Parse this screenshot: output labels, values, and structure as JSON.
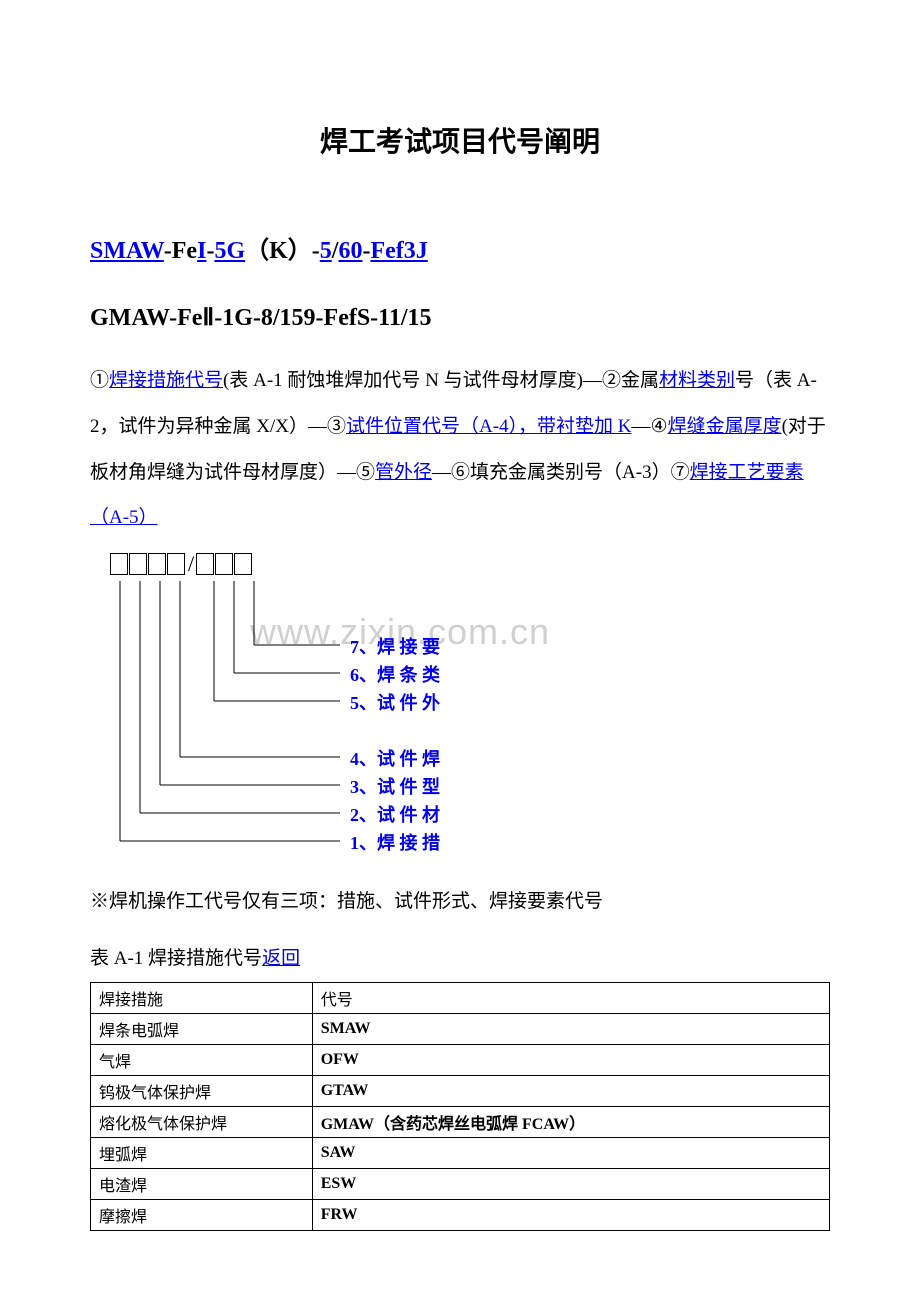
{
  "title": "焊工考试项目代号阐明",
  "example1": {
    "p1": "SMAW",
    "sep1": "-Fe",
    "p2": "I",
    "sep2": "-",
    "p3": "5G",
    "paren_open": "（",
    "p4": "K",
    "paren_close": "）",
    "sep3": "-",
    "p5": "5",
    "slash": "/",
    "p6": "60",
    "sep4": "-",
    "p7": "Fef3J"
  },
  "example2": "GMAW-FeⅡ-1G-8/159-FefS-11/15",
  "expl": {
    "c1": "①",
    "l1": "焊接措施代号",
    "t1": "(表 A-1 耐蚀堆焊加代号 N 与试件母材厚度)―②金属",
    "l2": "材料类别",
    "t2": "号（表 A-2，试件为异种金属 X/X）―③",
    "l3": "试件位置代号（A-4），带衬垫加 K",
    "t3": "―④",
    "l4": "焊缝金属厚度",
    "t4": "(对于板材角焊缝为试件母材厚度）―⑤",
    "l5": "管外径",
    "t5": "―⑥填充金属类别号（A-3）⑦",
    "l6": "焊接工艺要素（A-5）"
  },
  "watermark": "www.zixin.com.cn",
  "diagram_labels": {
    "d7": "7、焊 接 要",
    "d6": "6、焊 条 类",
    "d5": "5、试 件 外",
    "d4": "4、试 件 焊",
    "d3": "3、试 件 型",
    "d2": "2、试 件 材",
    "d1": "1、焊 接 措"
  },
  "note": "※焊机操作工代号仅有三项：措施、试件形式、焊接要素代号",
  "table_caption_prefix": "表 A-1 焊接措施代号",
  "table_caption_link": "返回",
  "table": {
    "rows": [
      [
        "焊接措施",
        "代号"
      ],
      [
        "焊条电弧焊",
        "SMAW"
      ],
      [
        "气焊",
        "OFW"
      ],
      [
        "钨极气体保护焊",
        "GTAW"
      ],
      [
        "熔化极气体保护焊",
        "GMAW（含药芯焊丝电弧焊 FCAW）"
      ],
      [
        "埋弧焊",
        "SAW"
      ],
      [
        "电渣焊",
        "ESW"
      ],
      [
        "摩擦焊",
        "FRW"
      ]
    ]
  }
}
